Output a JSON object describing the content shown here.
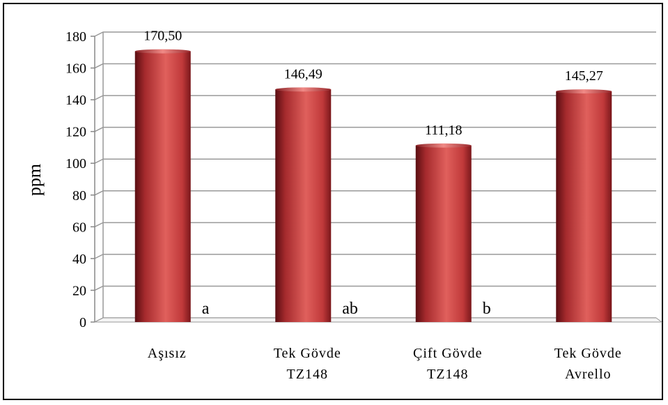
{
  "chart_data": {
    "type": "bar",
    "title": "",
    "xlabel": "",
    "ylabel": "ppm",
    "ylim": [
      0,
      180
    ],
    "yticks": [
      "0",
      "20",
      "40",
      "60",
      "80",
      "100",
      "120",
      "140",
      "160",
      "180"
    ],
    "categories": [
      [
        "Aşısız"
      ],
      [
        "Tek Gövde",
        "TZ148"
      ],
      [
        "Çift Gövde",
        "TZ148"
      ],
      [
        "Tek Gövde",
        "Avrello"
      ]
    ],
    "values": [
      170.5,
      146.49,
      111.18,
      145.27
    ],
    "value_labels": [
      "170,50",
      "146,49",
      "111,18",
      "145,27"
    ],
    "group_letters": [
      "a",
      "ab",
      "b",
      ""
    ],
    "grid": true,
    "legend": "none",
    "colors": {
      "bar_light": "#e0605c",
      "bar_mid": "#c0393a",
      "bar_dark": "#6a1216",
      "grid": "#999999"
    }
  }
}
